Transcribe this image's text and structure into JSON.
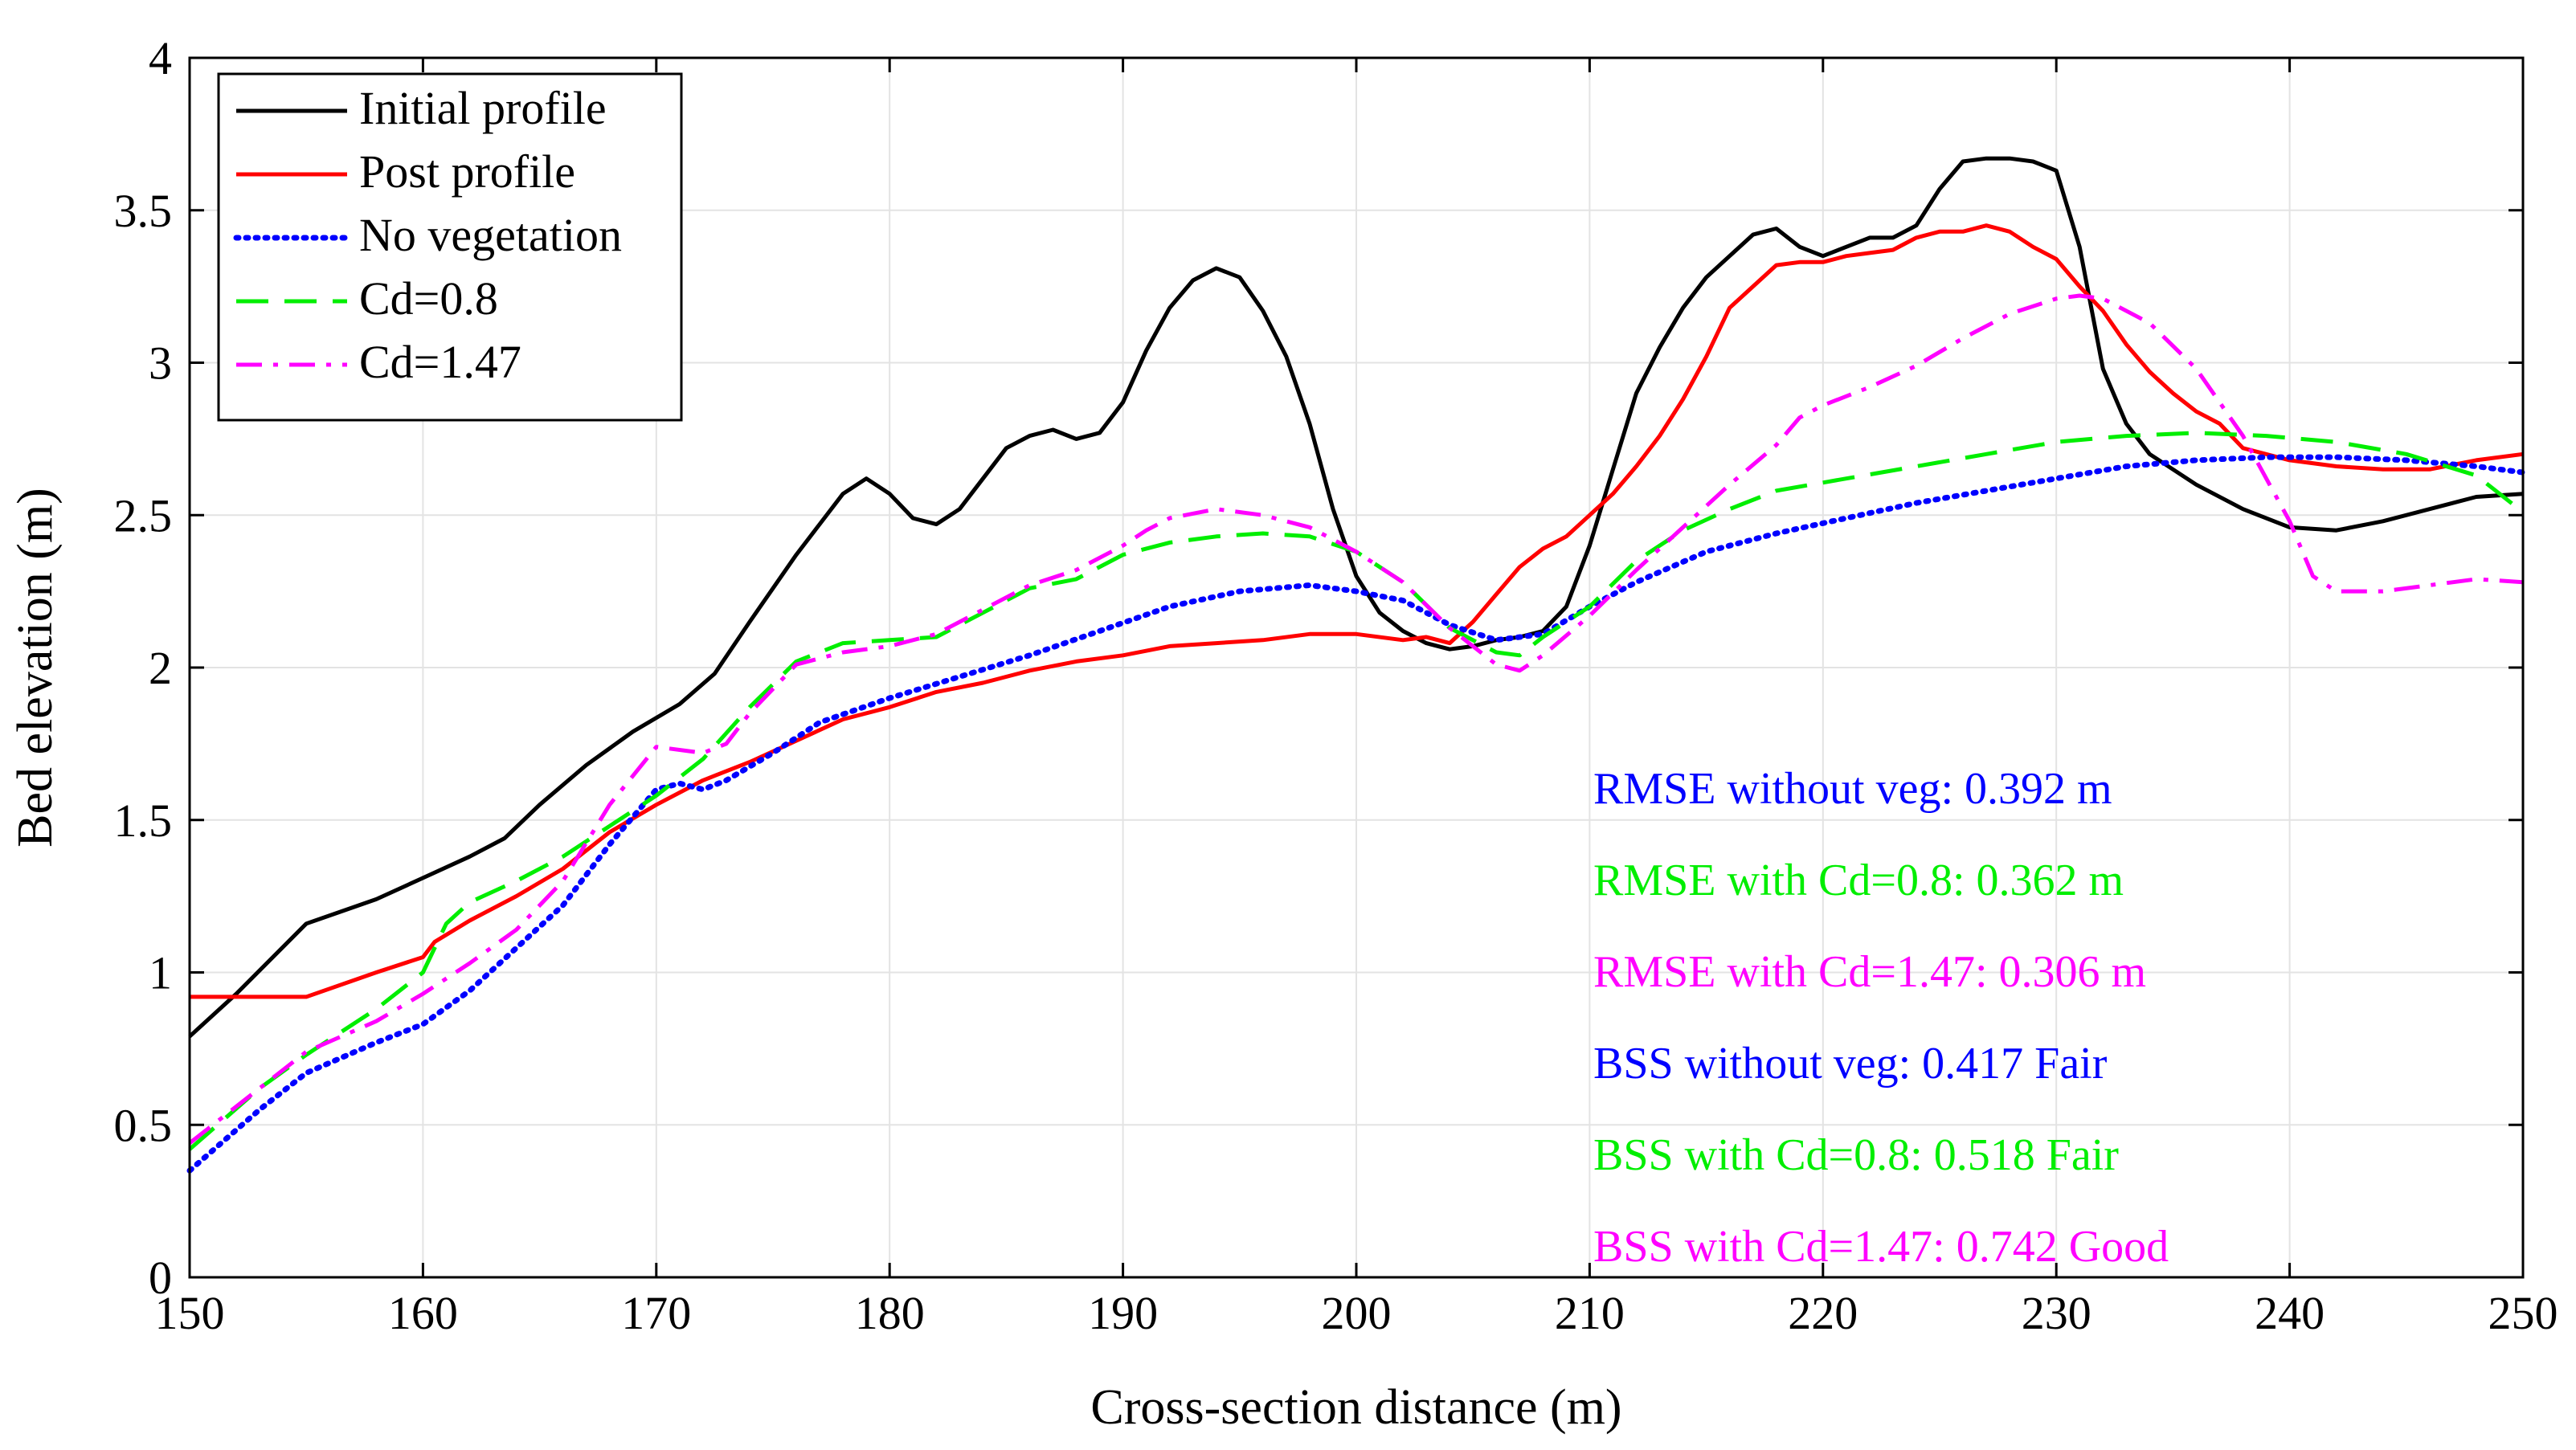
{
  "chart_data": {
    "type": "line",
    "title": "",
    "xlabel": "Cross-section distance (m)",
    "ylabel": "Bed elevation (m)",
    "xlim": [
      150,
      250
    ],
    "ylim": [
      0,
      4
    ],
    "grid": true,
    "legend_position": "top-left",
    "xticks": [
      150,
      160,
      170,
      180,
      190,
      200,
      210,
      220,
      230,
      240,
      250
    ],
    "xtick_labels": [
      "150",
      "160",
      "170",
      "180",
      "190",
      "200",
      "210",
      "220",
      "230",
      "240",
      "250"
    ],
    "yticks": [
      0,
      0.5,
      1,
      1.5,
      2,
      2.5,
      3,
      3.5,
      4
    ],
    "ytick_labels": [
      "0",
      "0.5",
      "1",
      "1.5",
      "2",
      "2.5",
      "3",
      "3.5",
      "4"
    ],
    "series": [
      {
        "name": "Initial profile",
        "color": "#000000",
        "style": "solid",
        "points": [
          [
            150,
            0.79
          ],
          [
            152,
            0.93
          ],
          [
            155,
            1.16
          ],
          [
            158,
            1.24
          ],
          [
            160,
            1.31
          ],
          [
            162,
            1.38
          ],
          [
            163.5,
            1.44
          ],
          [
            165,
            1.55
          ],
          [
            167,
            1.68
          ],
          [
            169,
            1.79
          ],
          [
            171,
            1.88
          ],
          [
            172.5,
            1.98
          ],
          [
            174,
            2.15
          ],
          [
            176,
            2.37
          ],
          [
            178,
            2.57
          ],
          [
            179,
            2.62
          ],
          [
            180,
            2.57
          ],
          [
            181,
            2.49
          ],
          [
            182,
            2.47
          ],
          [
            183,
            2.52
          ],
          [
            185,
            2.72
          ],
          [
            186,
            2.76
          ],
          [
            187,
            2.78
          ],
          [
            188,
            2.75
          ],
          [
            189,
            2.77
          ],
          [
            190,
            2.87
          ],
          [
            191,
            3.04
          ],
          [
            192,
            3.18
          ],
          [
            193,
            3.27
          ],
          [
            194,
            3.31
          ],
          [
            195,
            3.28
          ],
          [
            196,
            3.17
          ],
          [
            197,
            3.02
          ],
          [
            198,
            2.8
          ],
          [
            199,
            2.52
          ],
          [
            200,
            2.3
          ],
          [
            201,
            2.18
          ],
          [
            202,
            2.12
          ],
          [
            203,
            2.08
          ],
          [
            204,
            2.06
          ],
          [
            205,
            2.07
          ],
          [
            206,
            2.09
          ],
          [
            207,
            2.1
          ],
          [
            208,
            2.12
          ],
          [
            209,
            2.2
          ],
          [
            210,
            2.4
          ],
          [
            211,
            2.65
          ],
          [
            212,
            2.9
          ],
          [
            213,
            3.05
          ],
          [
            214,
            3.18
          ],
          [
            215,
            3.28
          ],
          [
            216,
            3.35
          ],
          [
            217,
            3.42
          ],
          [
            218,
            3.44
          ],
          [
            219,
            3.38
          ],
          [
            220,
            3.35
          ],
          [
            221,
            3.38
          ],
          [
            222,
            3.41
          ],
          [
            223,
            3.41
          ],
          [
            224,
            3.45
          ],
          [
            225,
            3.57
          ],
          [
            226,
            3.66
          ],
          [
            227,
            3.67
          ],
          [
            228,
            3.67
          ],
          [
            229,
            3.66
          ],
          [
            230,
            3.63
          ],
          [
            231,
            3.38
          ],
          [
            232,
            2.98
          ],
          [
            233,
            2.8
          ],
          [
            234,
            2.7
          ],
          [
            236,
            2.6
          ],
          [
            238,
            2.52
          ],
          [
            240,
            2.46
          ],
          [
            242,
            2.45
          ],
          [
            244,
            2.48
          ],
          [
            246,
            2.52
          ],
          [
            248,
            2.56
          ],
          [
            250,
            2.57
          ]
        ]
      },
      {
        "name": "Post profile",
        "color": "#ff0000",
        "style": "solid",
        "points": [
          [
            150,
            0.92
          ],
          [
            153,
            0.92
          ],
          [
            155,
            0.92
          ],
          [
            158,
            1.0
          ],
          [
            160,
            1.05
          ],
          [
            160.5,
            1.1
          ],
          [
            162,
            1.17
          ],
          [
            164,
            1.25
          ],
          [
            166,
            1.34
          ],
          [
            168,
            1.46
          ],
          [
            170,
            1.55
          ],
          [
            172,
            1.63
          ],
          [
            174,
            1.69
          ],
          [
            176,
            1.76
          ],
          [
            178,
            1.83
          ],
          [
            180,
            1.87
          ],
          [
            182,
            1.92
          ],
          [
            184,
            1.95
          ],
          [
            186,
            1.99
          ],
          [
            188,
            2.02
          ],
          [
            190,
            2.04
          ],
          [
            192,
            2.07
          ],
          [
            194,
            2.08
          ],
          [
            196,
            2.09
          ],
          [
            198,
            2.11
          ],
          [
            200,
            2.11
          ],
          [
            202,
            2.09
          ],
          [
            203,
            2.1
          ],
          [
            204,
            2.08
          ],
          [
            205,
            2.15
          ],
          [
            206,
            2.24
          ],
          [
            207,
            2.33
          ],
          [
            208,
            2.39
          ],
          [
            209,
            2.43
          ],
          [
            210,
            2.5
          ],
          [
            211,
            2.57
          ],
          [
            212,
            2.66
          ],
          [
            213,
            2.76
          ],
          [
            214,
            2.88
          ],
          [
            215,
            3.02
          ],
          [
            216,
            3.18
          ],
          [
            217,
            3.25
          ],
          [
            218,
            3.32
          ],
          [
            219,
            3.33
          ],
          [
            220,
            3.33
          ],
          [
            221,
            3.35
          ],
          [
            222,
            3.36
          ],
          [
            223,
            3.37
          ],
          [
            224,
            3.41
          ],
          [
            225,
            3.43
          ],
          [
            226,
            3.43
          ],
          [
            227,
            3.45
          ],
          [
            228,
            3.43
          ],
          [
            229,
            3.38
          ],
          [
            230,
            3.34
          ],
          [
            231,
            3.25
          ],
          [
            232,
            3.17
          ],
          [
            233,
            3.06
          ],
          [
            234,
            2.97
          ],
          [
            235,
            2.9
          ],
          [
            236,
            2.84
          ],
          [
            237,
            2.8
          ],
          [
            238,
            2.72
          ],
          [
            240,
            2.68
          ],
          [
            242,
            2.66
          ],
          [
            244,
            2.65
          ],
          [
            246,
            2.65
          ],
          [
            248,
            2.68
          ],
          [
            250,
            2.7
          ]
        ]
      },
      {
        "name": "No vegetation",
        "color": "#0000ff",
        "style": "dotted",
        "points": [
          [
            150,
            0.35
          ],
          [
            153,
            0.55
          ],
          [
            155,
            0.67
          ],
          [
            158,
            0.77
          ],
          [
            160,
            0.83
          ],
          [
            162,
            0.94
          ],
          [
            164,
            1.08
          ],
          [
            166,
            1.22
          ],
          [
            168,
            1.42
          ],
          [
            170,
            1.6
          ],
          [
            171,
            1.62
          ],
          [
            172,
            1.6
          ],
          [
            173,
            1.63
          ],
          [
            175,
            1.72
          ],
          [
            177,
            1.82
          ],
          [
            180,
            1.9
          ],
          [
            183,
            1.97
          ],
          [
            186,
            2.04
          ],
          [
            189,
            2.12
          ],
          [
            192,
            2.2
          ],
          [
            195,
            2.25
          ],
          [
            198,
            2.27
          ],
          [
            200,
            2.25
          ],
          [
            202,
            2.22
          ],
          [
            204,
            2.14
          ],
          [
            206,
            2.09
          ],
          [
            208,
            2.11
          ],
          [
            210,
            2.2
          ],
          [
            212,
            2.28
          ],
          [
            215,
            2.38
          ],
          [
            218,
            2.44
          ],
          [
            221,
            2.49
          ],
          [
            224,
            2.54
          ],
          [
            227,
            2.58
          ],
          [
            230,
            2.62
          ],
          [
            233,
            2.66
          ],
          [
            236,
            2.68
          ],
          [
            239,
            2.69
          ],
          [
            242,
            2.69
          ],
          [
            245,
            2.68
          ],
          [
            248,
            2.66
          ],
          [
            250,
            2.64
          ]
        ]
      },
      {
        "name": "Cd=0.8",
        "color": "#00ee00",
        "style": "dashed",
        "points": [
          [
            150,
            0.42
          ],
          [
            153,
            0.62
          ],
          [
            155,
            0.73
          ],
          [
            158,
            0.88
          ],
          [
            160,
            1.0
          ],
          [
            161,
            1.16
          ],
          [
            162,
            1.23
          ],
          [
            164,
            1.3
          ],
          [
            166,
            1.38
          ],
          [
            168,
            1.48
          ],
          [
            170,
            1.58
          ],
          [
            172,
            1.7
          ],
          [
            174,
            1.87
          ],
          [
            176,
            2.02
          ],
          [
            178,
            2.08
          ],
          [
            180,
            2.09
          ],
          [
            182,
            2.1
          ],
          [
            184,
            2.18
          ],
          [
            186,
            2.26
          ],
          [
            188,
            2.29
          ],
          [
            190,
            2.37
          ],
          [
            192,
            2.41
          ],
          [
            194,
            2.43
          ],
          [
            196,
            2.44
          ],
          [
            198,
            2.43
          ],
          [
            200,
            2.38
          ],
          [
            202,
            2.28
          ],
          [
            204,
            2.13
          ],
          [
            206,
            2.05
          ],
          [
            207,
            2.04
          ],
          [
            208,
            2.1
          ],
          [
            210,
            2.2
          ],
          [
            212,
            2.35
          ],
          [
            214,
            2.45
          ],
          [
            216,
            2.52
          ],
          [
            218,
            2.58
          ],
          [
            221,
            2.62
          ],
          [
            224,
            2.66
          ],
          [
            227,
            2.7
          ],
          [
            230,
            2.74
          ],
          [
            233,
            2.76
          ],
          [
            236,
            2.77
          ],
          [
            239,
            2.76
          ],
          [
            242,
            2.74
          ],
          [
            245,
            2.7
          ],
          [
            248,
            2.63
          ],
          [
            250,
            2.51
          ]
        ]
      },
      {
        "name": "Cd=1.47",
        "color": "#ff00ff",
        "style": "dashdot",
        "points": [
          [
            150,
            0.44
          ],
          [
            153,
            0.62
          ],
          [
            155,
            0.74
          ],
          [
            158,
            0.84
          ],
          [
            160,
            0.93
          ],
          [
            162,
            1.03
          ],
          [
            164,
            1.14
          ],
          [
            166,
            1.3
          ],
          [
            168,
            1.55
          ],
          [
            170,
            1.74
          ],
          [
            172,
            1.72
          ],
          [
            173,
            1.75
          ],
          [
            174,
            1.85
          ],
          [
            176,
            2.01
          ],
          [
            178,
            2.05
          ],
          [
            180,
            2.07
          ],
          [
            182,
            2.11
          ],
          [
            184,
            2.19
          ],
          [
            186,
            2.27
          ],
          [
            188,
            2.32
          ],
          [
            190,
            2.4
          ],
          [
            191,
            2.45
          ],
          [
            192,
            2.49
          ],
          [
            194,
            2.52
          ],
          [
            196,
            2.5
          ],
          [
            198,
            2.46
          ],
          [
            200,
            2.38
          ],
          [
            202,
            2.28
          ],
          [
            204,
            2.13
          ],
          [
            206,
            2.01
          ],
          [
            207,
            1.99
          ],
          [
            208,
            2.04
          ],
          [
            210,
            2.17
          ],
          [
            212,
            2.32
          ],
          [
            214,
            2.46
          ],
          [
            216,
            2.6
          ],
          [
            218,
            2.73
          ],
          [
            219,
            2.82
          ],
          [
            220,
            2.86
          ],
          [
            222,
            2.92
          ],
          [
            224,
            2.99
          ],
          [
            226,
            3.08
          ],
          [
            228,
            3.16
          ],
          [
            230,
            3.21
          ],
          [
            231,
            3.22
          ],
          [
            232,
            3.21
          ],
          [
            234,
            3.13
          ],
          [
            236,
            2.98
          ],
          [
            238,
            2.76
          ],
          [
            240,
            2.48
          ],
          [
            241,
            2.3
          ],
          [
            242,
            2.25
          ],
          [
            244,
            2.25
          ],
          [
            246,
            2.27
          ],
          [
            248,
            2.29
          ],
          [
            250,
            2.28
          ]
        ]
      }
    ],
    "annotations": [
      {
        "text": "RMSE without veg: 0.392 m",
        "color": "#0000ff"
      },
      {
        "text": "RMSE with Cd=0.8: 0.362 m",
        "color": "#00ee00"
      },
      {
        "text": "RMSE with Cd=1.47: 0.306 m",
        "color": "#ff00ff"
      },
      {
        "text": "BSS without veg: 0.417 Fair",
        "color": "#0000ff"
      },
      {
        "text": "BSS with  Cd=0.8: 0.518 Fair",
        "color": "#00ee00"
      },
      {
        "text": "BSS with  Cd=1.47: 0.742 Good",
        "color": "#ff00ff"
      }
    ]
  }
}
